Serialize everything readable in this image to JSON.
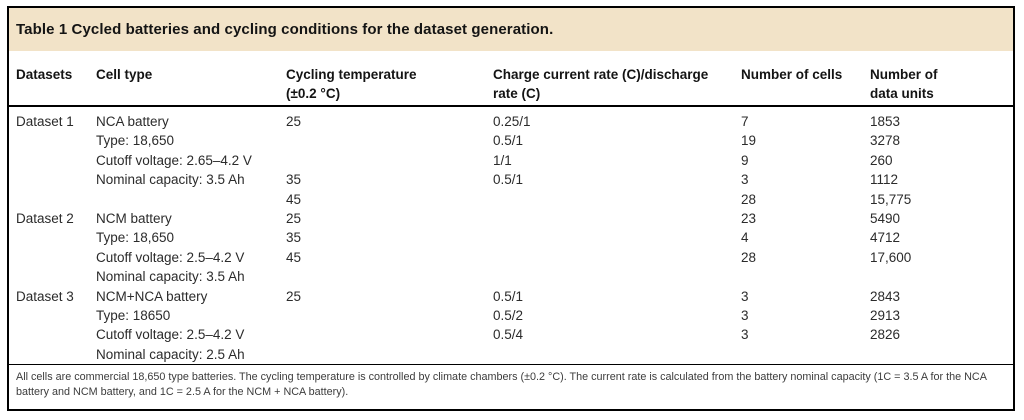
{
  "paper_table": {
    "title": "Table 1 Cycled batteries and cycling conditions for the dataset generation.",
    "columns": [
      "Datasets",
      "Cell type",
      "Cycling temperature\n(±0.2 °C)",
      "Charge current rate (C)/discharge\nrate (C)",
      "Number of cells",
      "Number of\ndata units"
    ],
    "rows": [
      [
        "Dataset 1",
        "NCA battery",
        "25",
        "0.25/1",
        "7",
        "1853"
      ],
      [
        "",
        "Type: 18,650",
        "",
        "0.5/1",
        "19",
        "3278"
      ],
      [
        "",
        "Cutoff voltage: 2.65–4.2 V",
        "",
        "1/1",
        "9",
        "260"
      ],
      [
        "",
        "Nominal capacity: 3.5 Ah",
        "35",
        "0.5/1",
        "3",
        "1112"
      ],
      [
        "",
        "",
        "45",
        "",
        "28",
        "15,775"
      ],
      [
        "Dataset 2",
        "NCM battery",
        "25",
        "",
        "23",
        "5490"
      ],
      [
        "",
        "Type: 18,650",
        "35",
        "",
        "4",
        "4712"
      ],
      [
        "",
        "Cutoff voltage: 2.5–4.2 V",
        "45",
        "",
        "28",
        "17,600"
      ],
      [
        "",
        "Nominal capacity: 3.5 Ah",
        "",
        "",
        "",
        ""
      ],
      [
        "Dataset 3",
        "NCM+NCA battery",
        "25",
        "0.5/1",
        "3",
        "2843"
      ],
      [
        "",
        "Type: 18650",
        "",
        "0.5/2",
        "3",
        "2913"
      ],
      [
        "",
        "Cutoff voltage: 2.5–4.2 V",
        "",
        "0.5/4",
        "3",
        "2826"
      ],
      [
        "",
        "Nominal capacity: 2.5 Ah",
        "",
        "",
        "",
        ""
      ]
    ],
    "footnote": "All cells are commercial 18,650 type batteries. The cycling temperature is controlled by climate chambers (±0.2 °C). The current rate is calculated from the battery nominal capacity (1C = 3.5 A for the NCA battery and NCM battery, and 1C = 2.5 A for the NCM + NCA battery).",
    "colors": {
      "header_band": "#f2e3c8",
      "rule": "#000000",
      "text": "#2b2b2b"
    }
  }
}
